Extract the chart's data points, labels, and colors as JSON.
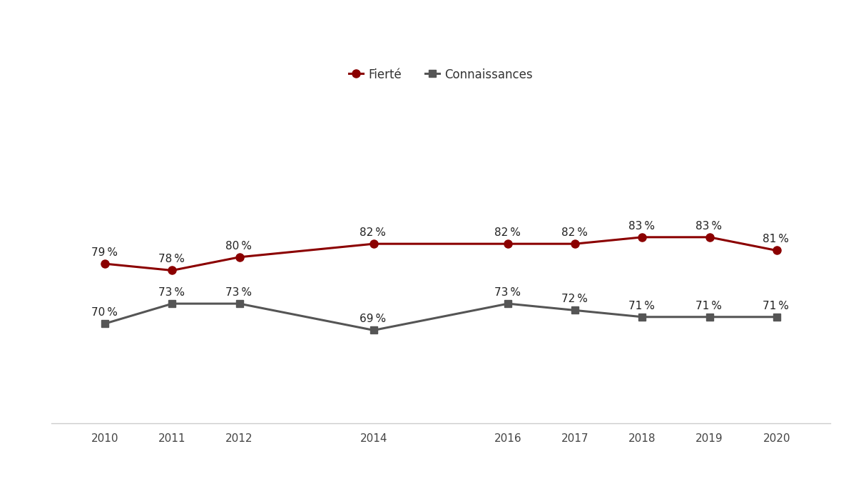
{
  "years": [
    2010,
    2011,
    2012,
    2014,
    2016,
    2017,
    2018,
    2019,
    2020
  ],
  "fiertes": [
    79,
    78,
    80,
    82,
    82,
    82,
    83,
    83,
    81
  ],
  "connaissances": [
    70,
    73,
    73,
    69,
    73,
    72,
    71,
    71,
    71
  ],
  "fiertee_color": "#8B0000",
  "connaissances_color": "#555555",
  "legend_label_1": "Fierté",
  "legend_label_2": "Connaissances",
  "background_color": "#ffffff",
  "label_fontsize": 11,
  "tick_fontsize": 11,
  "line_width": 2.2,
  "marker_size": 8,
  "ylim_min": 55,
  "ylim_max": 110
}
